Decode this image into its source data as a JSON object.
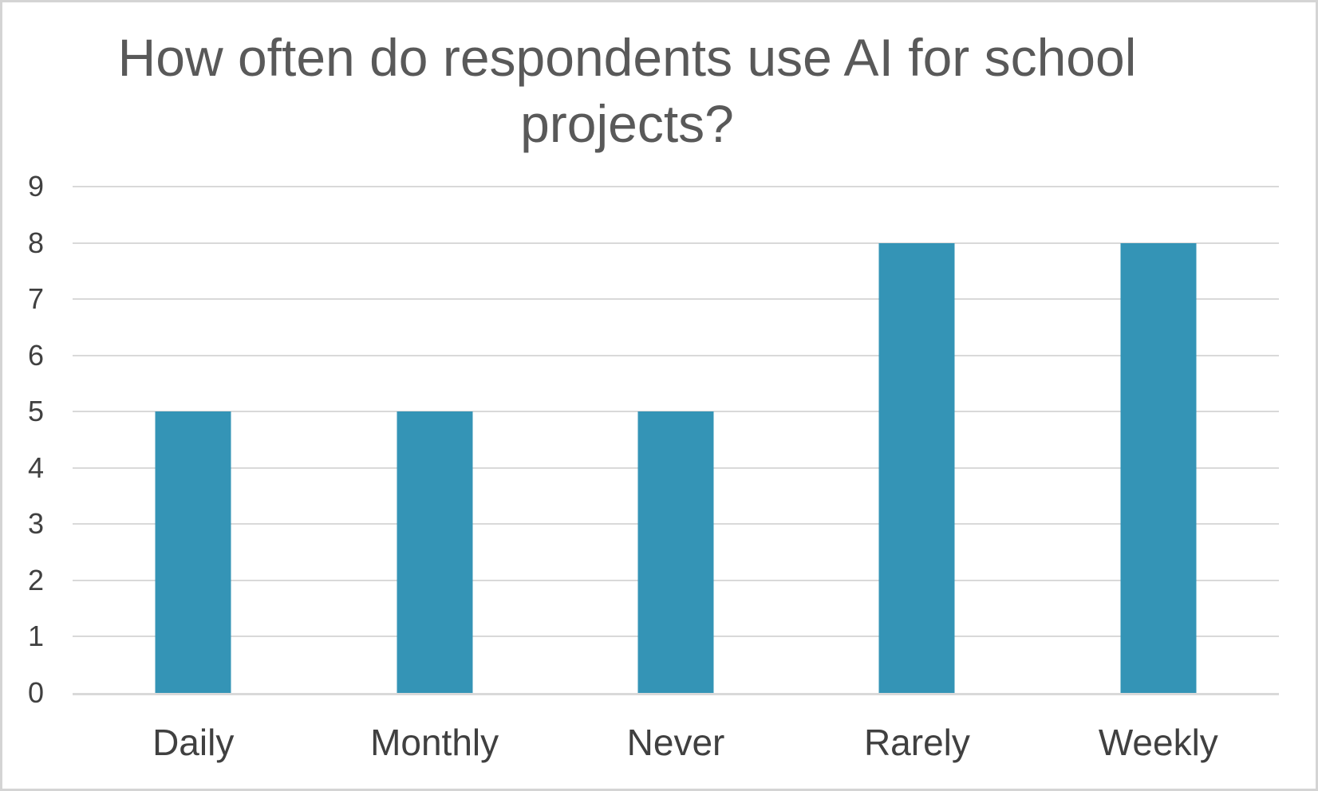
{
  "window": {
    "background": "#ffffff",
    "border_color": "#d4d4d4"
  },
  "chart_data": {
    "type": "bar",
    "title": "How often do respondents use AI for school projects?",
    "title_lines": [
      "How often do respondents use AI for school",
      "projects?"
    ],
    "categories": [
      "Daily",
      "Monthly",
      "Never",
      "Rarely",
      "Weekly"
    ],
    "values": [
      5,
      5,
      5,
      8,
      8
    ],
    "xlabel": "",
    "ylabel": "",
    "ylim": [
      0,
      9
    ],
    "yticks": [
      0,
      1,
      2,
      3,
      4,
      5,
      6,
      7,
      8,
      9
    ],
    "grid": true,
    "legend": false,
    "bar_color": "#3494b6",
    "gridline_color": "#d9d9d9",
    "baseline_color": "#d9d9d9",
    "title_color": "#595959",
    "tick_label_color": "#404040"
  }
}
